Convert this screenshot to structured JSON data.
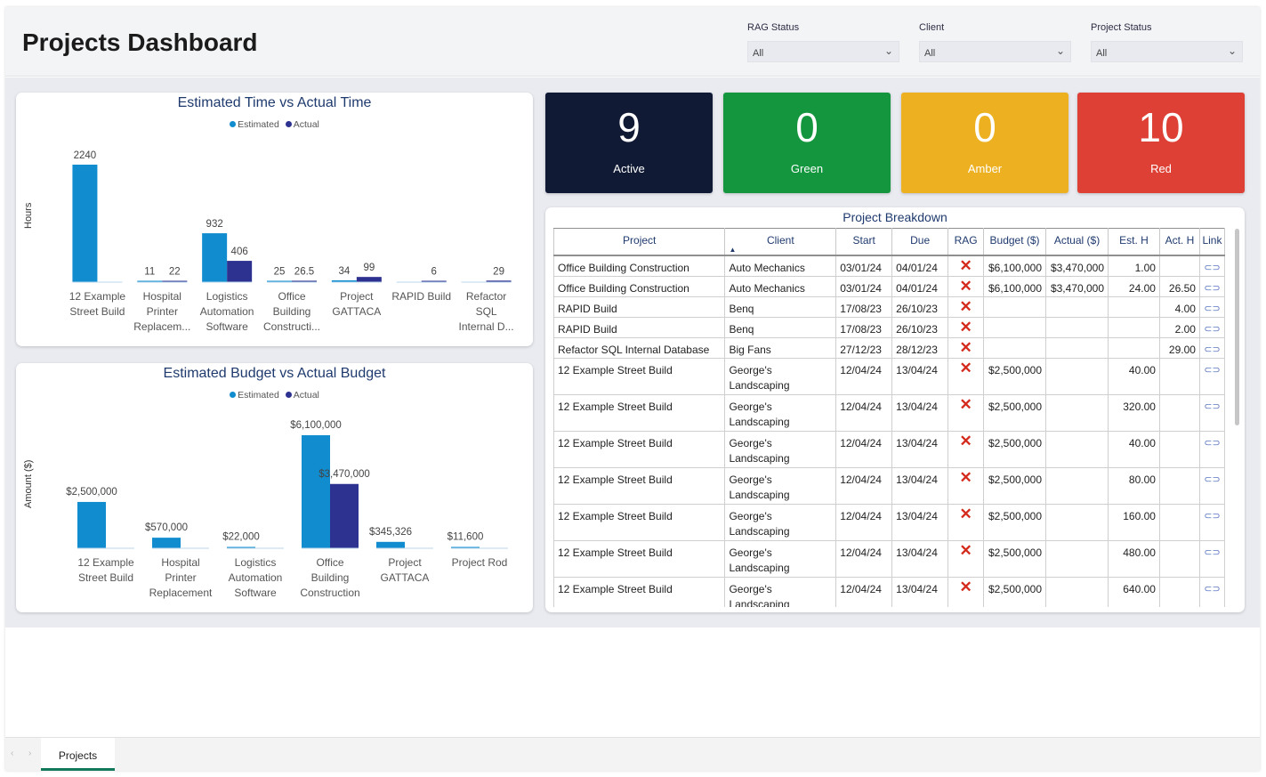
{
  "header": {
    "title": "Projects Dashboard",
    "filters": [
      {
        "label": "RAG Status",
        "value": "All"
      },
      {
        "label": "Client",
        "value": "All"
      },
      {
        "label": "Project Status",
        "value": "All"
      }
    ]
  },
  "colors": {
    "estimated": "#118dcf",
    "actual": "#2d3190",
    "active": "#101a34",
    "green": "#13963d",
    "amber": "#ecb021",
    "red": "#de4035",
    "accent_tab": "#13795b"
  },
  "kpis": [
    {
      "value": "9",
      "label": "Active"
    },
    {
      "value": "0",
      "label": "Green"
    },
    {
      "value": "0",
      "label": "Amber"
    },
    {
      "value": "10",
      "label": "Red"
    }
  ],
  "time_chart": {
    "title": "Estimated Time vs Actual Time",
    "legend": [
      "Estimated",
      "Actual"
    ],
    "ylabel": "Hours"
  },
  "budget_chart": {
    "title": "Estimated Budget vs Actual Budget",
    "legend": [
      "Estimated",
      "Actual"
    ],
    "ylabel": "Amount ($)"
  },
  "chart_data": [
    {
      "type": "bar",
      "title": "Estimated Time vs Actual Time",
      "xlabel": "",
      "ylabel": "Hours",
      "categories": [
        [
          "12 Example",
          "Street Build"
        ],
        [
          "Hospital",
          "Printer",
          "Replacem..."
        ],
        [
          "Logistics",
          "Automation",
          "Software"
        ],
        [
          "Office",
          "Building",
          "Constructi..."
        ],
        [
          "Project",
          "GATTACA"
        ],
        [
          "RAPID Build"
        ],
        [
          "Refactor",
          "SQL",
          "Internal D..."
        ]
      ],
      "series": [
        {
          "name": "Estimated",
          "values": [
            2240,
            11,
            932,
            25,
            34,
            null,
            null
          ],
          "labels": [
            "2240",
            "11",
            "932",
            "25",
            "34",
            "",
            ""
          ]
        },
        {
          "name": "Actual",
          "values": [
            null,
            22,
            406,
            26.5,
            99,
            6,
            29
          ],
          "labels": [
            "",
            "22",
            "406",
            "26.5",
            "99",
            "6",
            "29"
          ]
        }
      ],
      "ylim": [
        0,
        2240
      ],
      "legend_position": "top-center",
      "grid": false
    },
    {
      "type": "bar",
      "title": "Estimated Budget vs Actual Budget",
      "xlabel": "",
      "ylabel": "Amount ($)",
      "categories": [
        [
          "12 Example",
          "Street Build"
        ],
        [
          "Hospital",
          "Printer",
          "Replacement"
        ],
        [
          "Logistics",
          "Automation",
          "Software"
        ],
        [
          "Office",
          "Building",
          "Construction"
        ],
        [
          "Project",
          "GATTACA"
        ],
        [
          "Project Rod"
        ]
      ],
      "series": [
        {
          "name": "Estimated",
          "values": [
            2500000,
            570000,
            22000,
            6100000,
            345326,
            11600
          ],
          "labels": [
            "$2,500,000",
            "$570,000",
            "$22,000",
            "$6,100,000",
            "$345,326",
            "$11,600"
          ]
        },
        {
          "name": "Actual",
          "values": [
            null,
            null,
            null,
            3470000,
            null,
            null
          ],
          "labels": [
            "",
            "",
            "",
            "$3,470,000",
            "",
            ""
          ]
        }
      ],
      "ylim": [
        0,
        6100000
      ],
      "legend_position": "top-center",
      "grid": false
    }
  ],
  "table": {
    "title": "Project Breakdown",
    "columns": [
      "Project",
      "Client",
      "Start",
      "Due",
      "RAG",
      "Budget ($)",
      "Actual ($)",
      "Est. H",
      "Act. H",
      "Link"
    ],
    "rag_symbol": "✕",
    "link_symbol": "⊂⊃",
    "rows": [
      {
        "project": "Office Building Construction",
        "client": [
          "Auto Mechanics"
        ],
        "start": "03/01/24",
        "due": "04/01/24",
        "budget": "$6,100,000",
        "actual": "$3,470,000",
        "est_h": "1.00",
        "act_h": ""
      },
      {
        "project": "Office Building Construction",
        "client": [
          "Auto Mechanics"
        ],
        "start": "03/01/24",
        "due": "04/01/24",
        "budget": "$6,100,000",
        "actual": "$3,470,000",
        "est_h": "24.00",
        "act_h": "26.50"
      },
      {
        "project": "RAPID Build",
        "client": [
          "Benq"
        ],
        "start": "17/08/23",
        "due": "26/10/23",
        "budget": "",
        "actual": "",
        "est_h": "",
        "act_h": "4.00"
      },
      {
        "project": "RAPID Build",
        "client": [
          "Benq"
        ],
        "start": "17/08/23",
        "due": "26/10/23",
        "budget": "",
        "actual": "",
        "est_h": "",
        "act_h": "2.00"
      },
      {
        "project": "Refactor SQL Internal Database",
        "client": [
          "Big Fans"
        ],
        "start": "27/12/23",
        "due": "28/12/23",
        "budget": "",
        "actual": "",
        "est_h": "",
        "act_h": "29.00"
      },
      {
        "project": "12 Example Street Build",
        "client": [
          "George's",
          "Landscaping"
        ],
        "start": "12/04/24",
        "due": "13/04/24",
        "budget": "$2,500,000",
        "actual": "",
        "est_h": "40.00",
        "act_h": ""
      },
      {
        "project": "12 Example Street Build",
        "client": [
          "George's",
          "Landscaping"
        ],
        "start": "12/04/24",
        "due": "13/04/24",
        "budget": "$2,500,000",
        "actual": "",
        "est_h": "320.00",
        "act_h": ""
      },
      {
        "project": "12 Example Street Build",
        "client": [
          "George's",
          "Landscaping"
        ],
        "start": "12/04/24",
        "due": "13/04/24",
        "budget": "$2,500,000",
        "actual": "",
        "est_h": "40.00",
        "act_h": ""
      },
      {
        "project": "12 Example Street Build",
        "client": [
          "George's",
          "Landscaping"
        ],
        "start": "12/04/24",
        "due": "13/04/24",
        "budget": "$2,500,000",
        "actual": "",
        "est_h": "80.00",
        "act_h": ""
      },
      {
        "project": "12 Example Street Build",
        "client": [
          "George's",
          "Landscaping"
        ],
        "start": "12/04/24",
        "due": "13/04/24",
        "budget": "$2,500,000",
        "actual": "",
        "est_h": "160.00",
        "act_h": ""
      },
      {
        "project": "12 Example Street Build",
        "client": [
          "George's",
          "Landscaping"
        ],
        "start": "12/04/24",
        "due": "13/04/24",
        "budget": "$2,500,000",
        "actual": "",
        "est_h": "480.00",
        "act_h": ""
      },
      {
        "project": "12 Example Street Build",
        "client": [
          "George's",
          "Landscaping"
        ],
        "start": "12/04/24",
        "due": "13/04/24",
        "budget": "$2,500,000",
        "actual": "",
        "est_h": "640.00",
        "act_h": ""
      }
    ]
  },
  "footer": {
    "tabs": [
      "Projects"
    ],
    "prev_icon": "‹",
    "next_icon": "›"
  }
}
